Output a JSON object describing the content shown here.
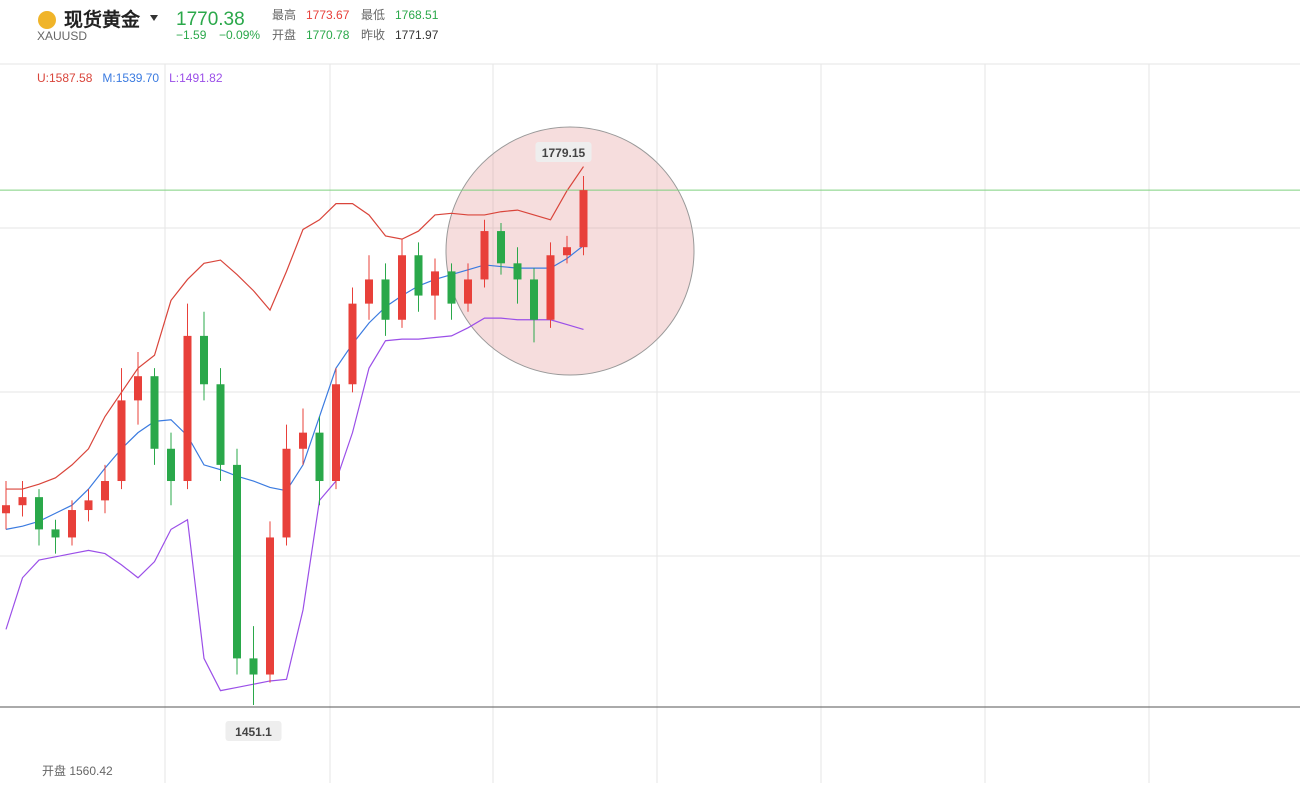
{
  "header": {
    "name": "现货黄金",
    "symbol": "XAUUSD",
    "price": "1770.38",
    "change": "−1.59",
    "change_pct": "−0.09%",
    "stats": [
      {
        "label": "最高",
        "value": "1773.67",
        "color": "#e8403a"
      },
      {
        "label": "开盘",
        "value": "1770.78",
        "color": "#2aa84a"
      },
      {
        "label": "最低",
        "value": "1768.51",
        "color": "#2aa84a"
      },
      {
        "label": "昨收",
        "value": "1771.97",
        "color": "#333333"
      }
    ]
  },
  "chart_data": {
    "type": "candlestick",
    "up_color": "#e8403a",
    "down_color": "#2aa84a",
    "last_price": 1770.38,
    "last_color": "#7fd07f",
    "open": [
      1570,
      1575,
      1580,
      1560,
      1555,
      1572,
      1578,
      1590,
      1640,
      1655,
      1610,
      1590,
      1680,
      1650,
      1600,
      1480,
      1470,
      1555,
      1610,
      1620,
      1590,
      1650,
      1700,
      1715,
      1690,
      1730,
      1705,
      1720,
      1700,
      1715,
      1745,
      1725,
      1715,
      1690,
      1730,
      1735
    ],
    "high": [
      1590,
      1590,
      1585,
      1566,
      1578,
      1585,
      1600,
      1660,
      1670,
      1660,
      1620,
      1700,
      1695,
      1660,
      1610,
      1500,
      1565,
      1625,
      1635,
      1630,
      1660,
      1710,
      1730,
      1725,
      1740,
      1738,
      1728,
      1725,
      1725,
      1752,
      1750,
      1735,
      1722,
      1738,
      1742,
      1779.15
    ],
    "low": [
      1560,
      1568,
      1550,
      1545,
      1550,
      1565,
      1570,
      1585,
      1625,
      1600,
      1575,
      1585,
      1640,
      1590,
      1470,
      1451.1,
      1465,
      1550,
      1600,
      1575,
      1585,
      1645,
      1690,
      1680,
      1685,
      1695,
      1690,
      1690,
      1695,
      1710,
      1718,
      1700,
      1676,
      1685,
      1725,
      1730
    ],
    "close": [
      1575,
      1580,
      1560,
      1555,
      1572,
      1578,
      1590,
      1640,
      1655,
      1610,
      1590,
      1680,
      1650,
      1600,
      1480,
      1470,
      1555,
      1610,
      1620,
      1590,
      1650,
      1700,
      1715,
      1690,
      1730,
      1705,
      1720,
      1700,
      1715,
      1745,
      1725,
      1715,
      1690,
      1730,
      1735,
      1770.38
    ],
    "series": [
      {
        "name": "U:1587.58",
        "color": "#d9453b",
        "values": [
          1585,
          1585,
          1588,
          1592,
          1600,
          1610,
          1630,
          1645,
          1660,
          1668,
          1702,
          1715,
          1725,
          1727,
          1718,
          1708,
          1696,
          1720,
          1746,
          1752,
          1762,
          1762,
          1755,
          1742,
          1740,
          1745,
          1755,
          1756,
          1755,
          1755,
          1757,
          1758,
          1755,
          1752,
          1770,
          1785
        ]
      },
      {
        "name": "M:1539.70",
        "color": "#3b7be0",
        "values": [
          1560,
          1562,
          1565,
          1570,
          1575,
          1585,
          1598,
          1610,
          1620,
          1627,
          1628,
          1618,
          1600,
          1597,
          1593,
          1590,
          1586,
          1584,
          1600,
          1630,
          1660,
          1675,
          1688,
          1698,
          1705,
          1711,
          1715,
          1718,
          1721,
          1724,
          1723,
          1722,
          1722,
          1722,
          1728,
          1736
        ]
      },
      {
        "name": "L:1491.82",
        "color": "#9b4fe8",
        "values": [
          1498,
          1530,
          1541,
          1543,
          1545,
          1547,
          1545,
          1538,
          1530,
          1540,
          1560,
          1566,
          1480,
          1460,
          1462,
          1464,
          1466,
          1467,
          1510,
          1578,
          1590,
          1620,
          1660,
          1677,
          1678,
          1678,
          1679,
          1680,
          1685,
          1691,
          1691,
          1690,
          1690,
          1690,
          1687,
          1684
        ]
      }
    ],
    "footer": "开盘 1560.42"
  }
}
